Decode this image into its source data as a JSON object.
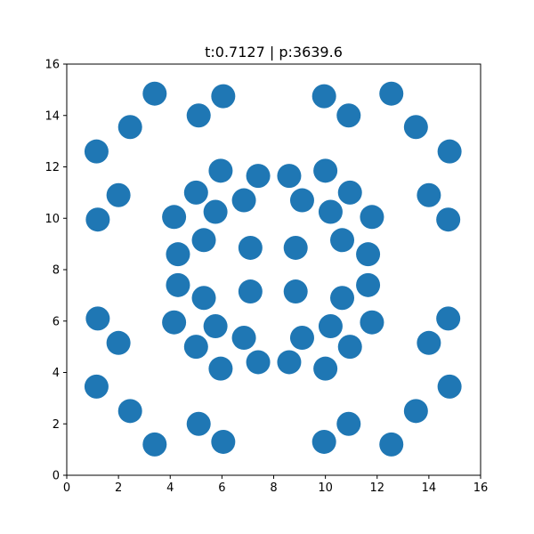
{
  "chart_data": {
    "type": "scatter",
    "title": "t:0.7127 | p:3639.6",
    "xlabel": "",
    "ylabel": "",
    "xlim": [
      0,
      16
    ],
    "ylim": [
      0,
      16
    ],
    "grid": false,
    "legend": "none",
    "marker_color": "#1f77b4",
    "x_ticks": [
      0,
      2,
      4,
      6,
      8,
      10,
      12,
      14,
      16
    ],
    "y_ticks": [
      0,
      2,
      4,
      6,
      8,
      10,
      12,
      14,
      16
    ],
    "points": [
      {
        "x": 3.4,
        "y": 14.85
      },
      {
        "x": 6.05,
        "y": 14.75
      },
      {
        "x": 5.1,
        "y": 14.0
      },
      {
        "x": 2.45,
        "y": 13.55
      },
      {
        "x": 1.15,
        "y": 12.6
      },
      {
        "x": 2.0,
        "y": 10.9
      },
      {
        "x": 1.2,
        "y": 9.95
      },
      {
        "x": 9.95,
        "y": 14.75
      },
      {
        "x": 12.55,
        "y": 14.85
      },
      {
        "x": 10.9,
        "y": 14.0
      },
      {
        "x": 13.5,
        "y": 13.55
      },
      {
        "x": 14.8,
        "y": 12.6
      },
      {
        "x": 14.0,
        "y": 10.9
      },
      {
        "x": 14.75,
        "y": 9.95
      },
      {
        "x": 1.2,
        "y": 6.1
      },
      {
        "x": 2.0,
        "y": 5.15
      },
      {
        "x": 1.15,
        "y": 3.45
      },
      {
        "x": 2.45,
        "y": 2.5
      },
      {
        "x": 5.1,
        "y": 2.0
      },
      {
        "x": 3.4,
        "y": 1.2
      },
      {
        "x": 6.05,
        "y": 1.3
      },
      {
        "x": 14.75,
        "y": 6.1
      },
      {
        "x": 14.0,
        "y": 5.15
      },
      {
        "x": 14.8,
        "y": 3.45
      },
      {
        "x": 13.5,
        "y": 2.5
      },
      {
        "x": 10.9,
        "y": 2.0
      },
      {
        "x": 12.55,
        "y": 1.2
      },
      {
        "x": 9.95,
        "y": 1.3
      },
      {
        "x": 5.95,
        "y": 11.85
      },
      {
        "x": 7.4,
        "y": 11.65
      },
      {
        "x": 8.6,
        "y": 11.65
      },
      {
        "x": 10.0,
        "y": 11.85
      },
      {
        "x": 5.0,
        "y": 11.0
      },
      {
        "x": 6.85,
        "y": 10.7
      },
      {
        "x": 9.1,
        "y": 10.7
      },
      {
        "x": 10.95,
        "y": 11.0
      },
      {
        "x": 4.15,
        "y": 10.05
      },
      {
        "x": 5.75,
        "y": 10.25
      },
      {
        "x": 10.2,
        "y": 10.25
      },
      {
        "x": 11.8,
        "y": 10.05
      },
      {
        "x": 5.3,
        "y": 9.15
      },
      {
        "x": 7.1,
        "y": 8.85
      },
      {
        "x": 8.85,
        "y": 8.85
      },
      {
        "x": 10.65,
        "y": 9.15
      },
      {
        "x": 4.3,
        "y": 8.6
      },
      {
        "x": 11.65,
        "y": 8.6
      },
      {
        "x": 4.3,
        "y": 7.4
      },
      {
        "x": 11.65,
        "y": 7.4
      },
      {
        "x": 5.3,
        "y": 6.9
      },
      {
        "x": 7.1,
        "y": 7.15
      },
      {
        "x": 8.85,
        "y": 7.15
      },
      {
        "x": 10.65,
        "y": 6.9
      },
      {
        "x": 4.15,
        "y": 5.95
      },
      {
        "x": 5.75,
        "y": 5.8
      },
      {
        "x": 10.2,
        "y": 5.8
      },
      {
        "x": 11.8,
        "y": 5.95
      },
      {
        "x": 6.85,
        "y": 5.35
      },
      {
        "x": 9.1,
        "y": 5.35
      },
      {
        "x": 5.0,
        "y": 5.0
      },
      {
        "x": 10.95,
        "y": 5.0
      },
      {
        "x": 5.95,
        "y": 4.15
      },
      {
        "x": 7.4,
        "y": 4.4
      },
      {
        "x": 8.6,
        "y": 4.4
      },
      {
        "x": 10.0,
        "y": 4.15
      }
    ]
  }
}
